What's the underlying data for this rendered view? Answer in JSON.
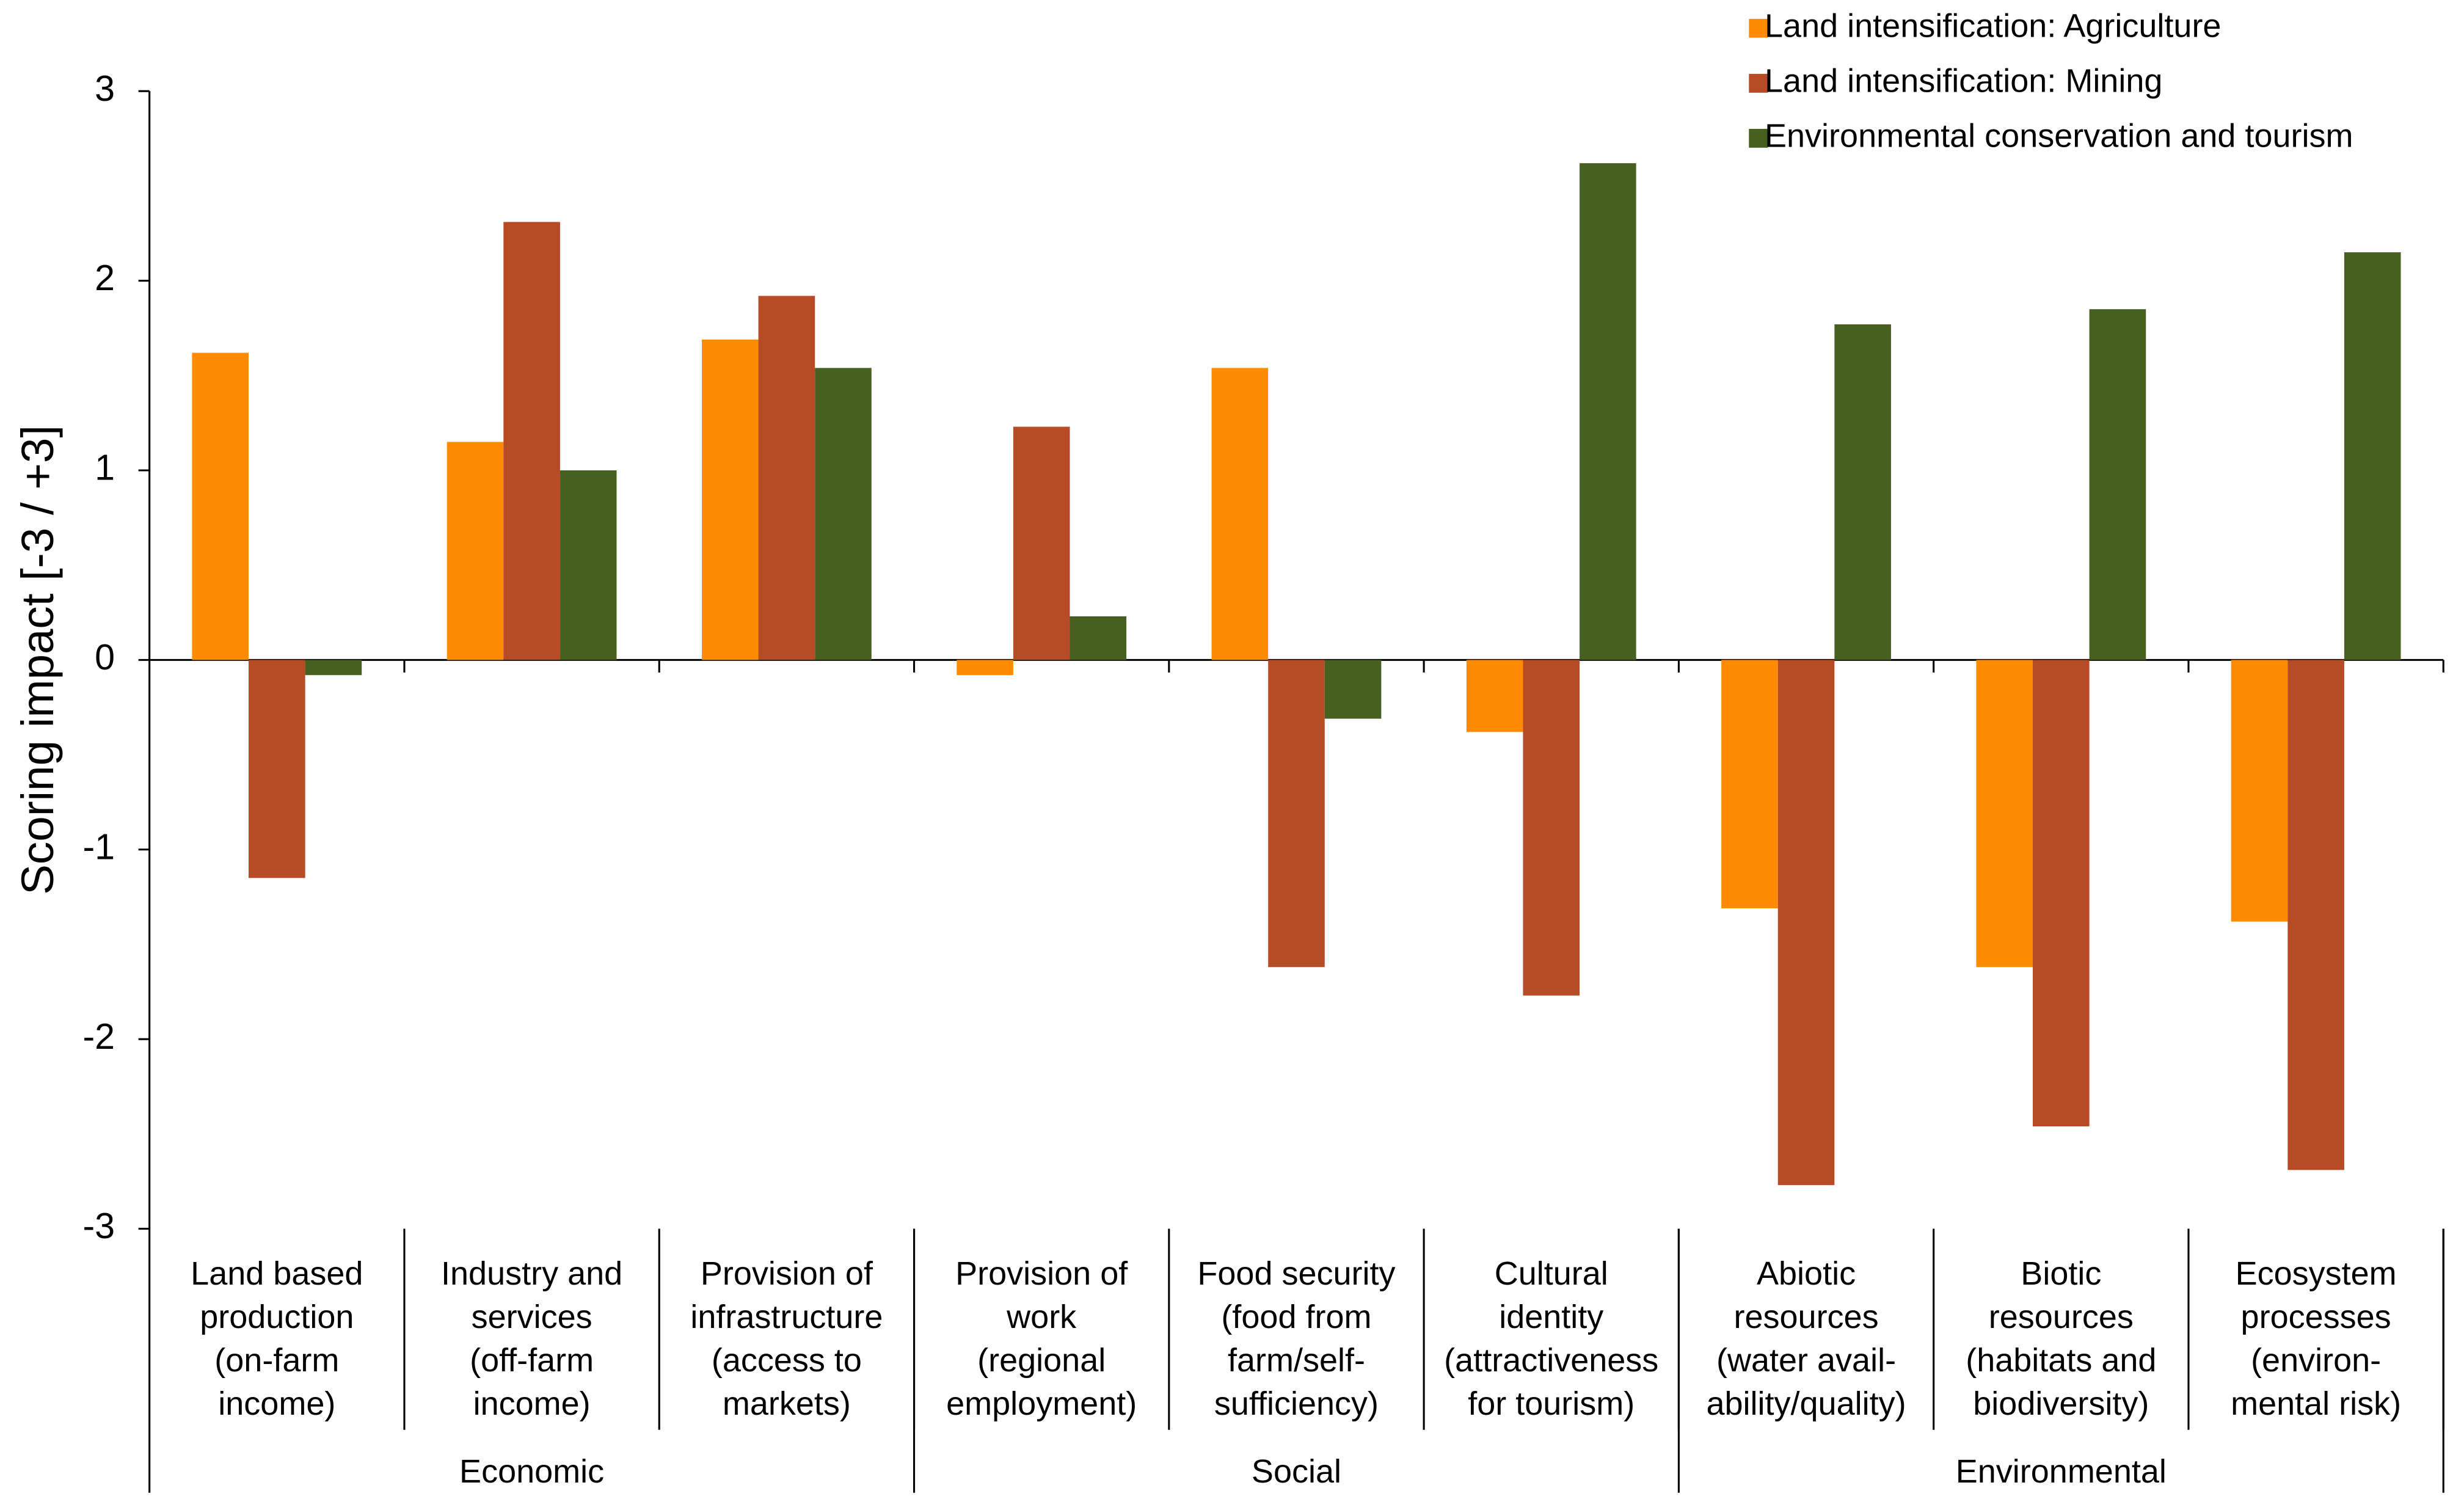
{
  "chart_data": {
    "type": "bar",
    "y_label": "Scoring impact [-3 / +3]",
    "categories": [
      [
        "Land based",
        "production",
        "(on-farm",
        "income)"
      ],
      [
        "Industry and",
        "services",
        "(off-farm",
        "income)"
      ],
      [
        "Provision of",
        "infrastructure",
        "(access to",
        "markets)"
      ],
      [
        "Provision of",
        "work",
        "(regional",
        "employment)"
      ],
      [
        "Food security",
        "(food from",
        "farm/self-",
        "sufficiency)"
      ],
      [
        "Cultural",
        "identity",
        "(attractiveness",
        "for tourism)"
      ],
      [
        "Abiotic",
        "resources",
        "(water avail-",
        "ability/quality)"
      ],
      [
        "Biotic",
        "resources",
        "(habitats and",
        "biodiversity)"
      ],
      [
        "Ecosystem",
        "processes",
        "(environ-",
        "mental risk)"
      ]
    ],
    "groups": [
      "Economic",
      "Social",
      "Environmental"
    ],
    "series": [
      {
        "name": "Land intensification: Agriculture",
        "color": "#ff8c00",
        "values": [
          1.62,
          1.15,
          1.69,
          -0.08,
          1.54,
          -0.38,
          -1.31,
          -1.62,
          -1.38
        ]
      },
      {
        "name": "Land intensification: Mining",
        "color": "#b64b25",
        "values": [
          -1.15,
          2.31,
          1.92,
          1.23,
          -1.62,
          -1.77,
          -2.77,
          -2.46,
          -2.69
        ]
      },
      {
        "name": "Environmental conservation and tourism",
        "color": "#476020",
        "values": [
          -0.08,
          1.0,
          1.54,
          0.23,
          -0.31,
          2.62,
          1.77,
          1.85,
          2.15
        ]
      }
    ],
    "ylim": [
      -3,
      3
    ],
    "yticks": [
      -3,
      -2,
      -1,
      0,
      1,
      2,
      3
    ],
    "grid": false,
    "legend": "top-right"
  }
}
